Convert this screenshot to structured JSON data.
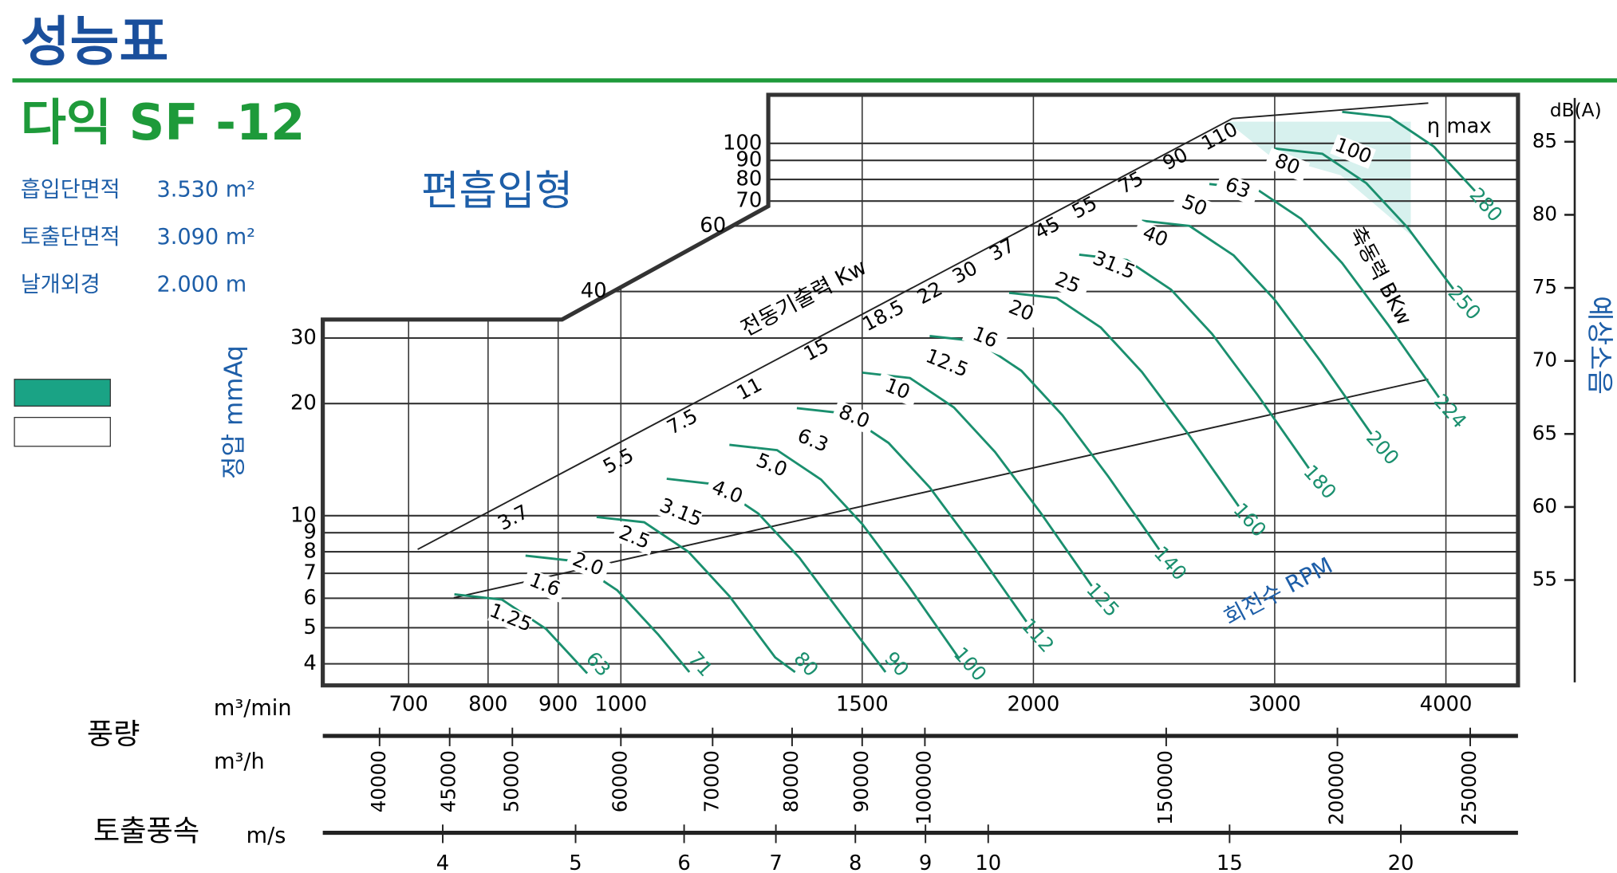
{
  "header": {
    "title": "성능표",
    "model": "다익 SF -12"
  },
  "specs": [
    {
      "label": "흡입단면적",
      "value": "3.530 m²"
    },
    {
      "label": "토출단면적",
      "value": "3.090 m²"
    },
    {
      "label": "날개외경",
      "value": "2.000 m"
    }
  ],
  "chart_data": {
    "type": "line",
    "title": "편흡입형",
    "y_label": "정압 mmAq",
    "x_label": "m³/min",
    "flow_label": "풍량",
    "x_log": true,
    "y_log": true,
    "xlim": [
      606,
      4515
    ],
    "xticks": [
      700,
      800,
      900,
      1000,
      1500,
      2000,
      3000,
      4000
    ],
    "ylim": [
      3.5,
      135
    ],
    "yticks": [
      4,
      5,
      6,
      7,
      8,
      9,
      10,
      20,
      30,
      40,
      60,
      70,
      80,
      90,
      100
    ],
    "grid": true,
    "series": [
      {
        "name": "63",
        "color": "#1a8f6e",
        "x": [
          756,
          819,
          882,
          945
        ],
        "values": [
          6.15,
          5.95,
          4.96,
          3.77
        ]
      },
      {
        "name": "71",
        "color": "#1a8f6e",
        "x": [
          852,
          923,
          994,
          1065,
          1122
        ],
        "values": [
          7.81,
          7.56,
          6.3,
          4.79,
          3.8
        ]
      },
      {
        "name": "80",
        "color": "#1a8f6e",
        "x": [
          960,
          1040,
          1120,
          1200,
          1296,
          1340
        ],
        "values": [
          9.92,
          9.6,
          8.0,
          6.08,
          4.16,
          3.8
        ]
      },
      {
        "name": "90",
        "color": "#1a8f6e",
        "x": [
          1080,
          1170,
          1260,
          1350,
          1458,
          1560
        ],
        "values": [
          12.56,
          12.15,
          10.13,
          7.7,
          5.27,
          3.8
        ]
      },
      {
        "name": "100",
        "color": "#1a8f6e",
        "x": [
          1200,
          1300,
          1400,
          1500,
          1620,
          1765
        ],
        "values": [
          15.5,
          15,
          12.5,
          9.5,
          6.5,
          4.14
        ]
      },
      {
        "name": "112",
        "color": "#1a8f6e",
        "x": [
          1344,
          1456,
          1568,
          1680,
          1814,
          1977
        ],
        "values": [
          19.44,
          18.82,
          15.68,
          11.92,
          8.15,
          5.19
        ]
      },
      {
        "name": "125",
        "color": "#1a8f6e",
        "x": [
          1500,
          1625,
          1750,
          1875,
          2025,
          2206
        ],
        "values": [
          24.22,
          23.44,
          19.53,
          14.84,
          10.16,
          6.47
        ]
      },
      {
        "name": "140",
        "color": "#1a8f6e",
        "x": [
          1680,
          1820,
          1960,
          2100,
          2268,
          2471
        ],
        "values": [
          30.38,
          29.4,
          24.5,
          18.62,
          12.74,
          8.11
        ]
      },
      {
        "name": "160",
        "color": "#1a8f6e",
        "x": [
          1920,
          2080,
          2240,
          2400,
          2592,
          2824
        ],
        "values": [
          39.68,
          38.4,
          32,
          24.32,
          16.64,
          10.6
        ]
      },
      {
        "name": "180",
        "color": "#1a8f6e",
        "x": [
          2160,
          2340,
          2520,
          2700,
          2916,
          3177
        ],
        "values": [
          50.22,
          48.6,
          40.5,
          30.78,
          21.06,
          13.41
        ]
      },
      {
        "name": "200",
        "color": "#1a8f6e",
        "x": [
          2400,
          2600,
          2800,
          3000,
          3240,
          3530
        ],
        "values": [
          62,
          60,
          50,
          38,
          26,
          16.56
        ]
      },
      {
        "name": "224",
        "color": "#1a8f6e",
        "x": [
          2688,
          2912,
          3136,
          3360,
          3629,
          3954
        ],
        "values": [
          77.77,
          75.26,
          62.72,
          47.67,
          32.61,
          20.77
        ]
      },
      {
        "name": "250",
        "color": "#1a8f6e",
        "x": [
          3000,
          3250,
          3500,
          3750,
          4050
        ],
        "values": [
          96.88,
          93.75,
          78.13,
          59.38,
          40.63
        ]
      },
      {
        "name": "280",
        "color": "#1a8f6e",
        "x": [
          3360,
          3640,
          3920,
          4200
        ],
        "values": [
          121.5,
          117.6,
          98,
          74.48
        ]
      }
    ],
    "motor_output_label": "전동기출력 Kw",
    "motor_output_kw": [
      "3.7",
      "5.5",
      "7.5",
      "11",
      "15",
      "18.5",
      "22",
      "30",
      "37",
      "45",
      "55",
      "75",
      "90",
      "110"
    ],
    "shaft_power_label": "축동력 BKw",
    "shaft_power_kw": [
      "1.25",
      "1.6",
      "2.0",
      "2.5",
      "3.15",
      "4.0",
      "5.0",
      "6.3",
      "8.0",
      "10",
      "12.5",
      "16",
      "20",
      "25",
      "31.5",
      "40",
      "50",
      "63",
      "80",
      "100"
    ],
    "rpm_label": "회전수 RPM",
    "efficiency_label": "η max",
    "y2_label": "예상소음",
    "y2_unit": "dB(A)",
    "y2lim": [
      48,
      88
    ],
    "y2ticks": [
      55,
      60,
      65,
      70,
      75,
      80,
      85
    ],
    "secondary_axes": [
      {
        "label": "m³/h",
        "x_log": true,
        "xlim": [
          36360,
          270900
        ],
        "xticks": [
          40000,
          45000,
          50000,
          60000,
          70000,
          80000,
          90000,
          100000,
          150000,
          200000,
          250000
        ]
      },
      {
        "title": "토출풍속",
        "label": "m/s",
        "x_log": true,
        "xlim": [
          3.27,
          24.35
        ],
        "xticks": [
          4,
          5,
          6,
          7,
          8,
          9,
          10,
          15,
          20
        ]
      }
    ]
  }
}
